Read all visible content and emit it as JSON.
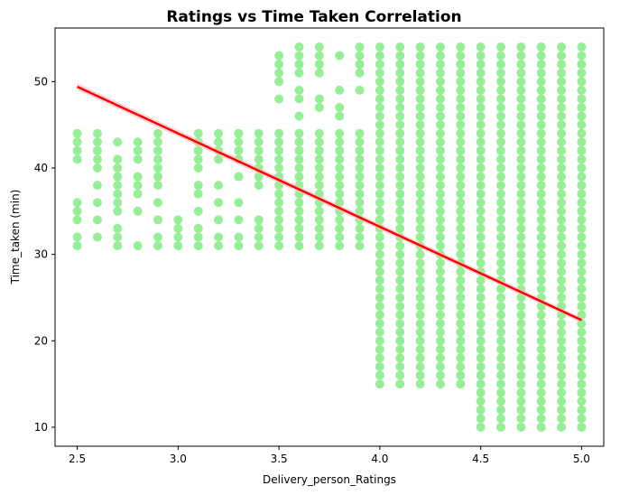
{
  "chart_data": {
    "type": "scatter",
    "title": "Ratings vs Time Taken Correlation",
    "xlabel": "Delivery_person_Ratings",
    "ylabel": "Time_taken (min)",
    "xlim": [
      2.39,
      5.11
    ],
    "ylim": [
      7.8,
      56.2
    ],
    "x_ticks": [
      "2.5",
      "3.0",
      "3.5",
      "4.0",
      "4.5",
      "5.0"
    ],
    "y_ticks": [
      "10",
      "20",
      "30",
      "40",
      "50"
    ],
    "x_tick_values": [
      2.5,
      3.0,
      3.5,
      4.0,
      4.5,
      5.0
    ],
    "y_tick_values": [
      10,
      20,
      30,
      40,
      50
    ],
    "grid": false,
    "point_color": "#90EE90",
    "line_color": "#FF0000",
    "band_color": "#FFB6C1",
    "series": [
      {
        "kind": "points",
        "columns": [
          {
            "x": 2.5,
            "y": [
              31,
              32,
              34,
              35,
              36,
              41,
              42,
              43,
              44
            ]
          },
          {
            "x": 2.6,
            "y": [
              32,
              34,
              36,
              38,
              40,
              41,
              42,
              43,
              44
            ]
          },
          {
            "x": 2.7,
            "y": [
              31,
              32,
              33,
              35,
              36,
              37,
              38,
              39,
              40,
              41,
              43
            ]
          },
          {
            "x": 2.8,
            "y": [
              31,
              35,
              37,
              38,
              39,
              41,
              42,
              43
            ]
          },
          {
            "x": 2.9,
            "y": [
              31,
              32,
              34,
              36,
              38,
              39,
              40,
              41,
              42,
              43,
              44
            ]
          },
          {
            "x": 3.0,
            "y": [
              31,
              32,
              33,
              34
            ]
          },
          {
            "x": 3.1,
            "y": [
              31,
              32,
              33,
              35,
              37,
              38,
              40,
              41,
              42,
              43,
              44
            ]
          },
          {
            "x": 3.2,
            "y": [
              31,
              32,
              34,
              36,
              38,
              41,
              42,
              43,
              44
            ]
          },
          {
            "x": 3.3,
            "y": [
              31,
              32,
              34,
              36,
              39,
              41,
              42,
              43,
              44
            ]
          },
          {
            "x": 3.4,
            "y": [
              31,
              32,
              33,
              34,
              38,
              39,
              40,
              41,
              42,
              43,
              44
            ]
          },
          {
            "x": 3.5,
            "y": [
              31,
              32,
              33,
              34,
              35,
              36,
              37,
              38,
              39,
              40,
              41,
              42,
              43,
              44,
              48,
              50,
              51,
              52,
              53
            ]
          },
          {
            "x": 3.6,
            "y": [
              31,
              32,
              33,
              34,
              35,
              36,
              37,
              38,
              39,
              40,
              41,
              42,
              43,
              44,
              46,
              48,
              49,
              51,
              52,
              53,
              54
            ]
          },
          {
            "x": 3.7,
            "y": [
              31,
              32,
              33,
              34,
              35,
              36,
              37,
              38,
              39,
              40,
              41,
              42,
              43,
              44,
              47,
              48,
              51,
              52,
              53,
              54
            ]
          },
          {
            "x": 3.8,
            "y": [
              31,
              32,
              33,
              34,
              35,
              36,
              37,
              38,
              39,
              40,
              41,
              42,
              43,
              44,
              46,
              47,
              49,
              53
            ]
          },
          {
            "x": 3.9,
            "y": [
              31,
              32,
              33,
              34,
              35,
              36,
              37,
              38,
              39,
              40,
              41,
              42,
              43,
              44,
              49,
              51,
              52,
              53,
              54
            ]
          },
          {
            "x": 4.0,
            "range": [
              15,
              54
            ]
          },
          {
            "x": 4.1,
            "range": [
              15,
              54
            ]
          },
          {
            "x": 4.2,
            "range": [
              15,
              54
            ]
          },
          {
            "x": 4.3,
            "range": [
              15,
              54
            ]
          },
          {
            "x": 4.4,
            "range": [
              15,
              54
            ]
          },
          {
            "x": 4.5,
            "range": [
              10,
              54
            ]
          },
          {
            "x": 4.6,
            "range": [
              10,
              54
            ]
          },
          {
            "x": 4.7,
            "range": [
              10,
              54
            ]
          },
          {
            "x": 4.8,
            "range": [
              10,
              54
            ]
          },
          {
            "x": 4.9,
            "range": [
              10,
              54
            ]
          },
          {
            "x": 5.0,
            "range": [
              10,
              54
            ]
          }
        ]
      },
      {
        "kind": "regression",
        "x": [
          2.5,
          5.0
        ],
        "y": [
          49.4,
          22.4
        ]
      }
    ]
  }
}
